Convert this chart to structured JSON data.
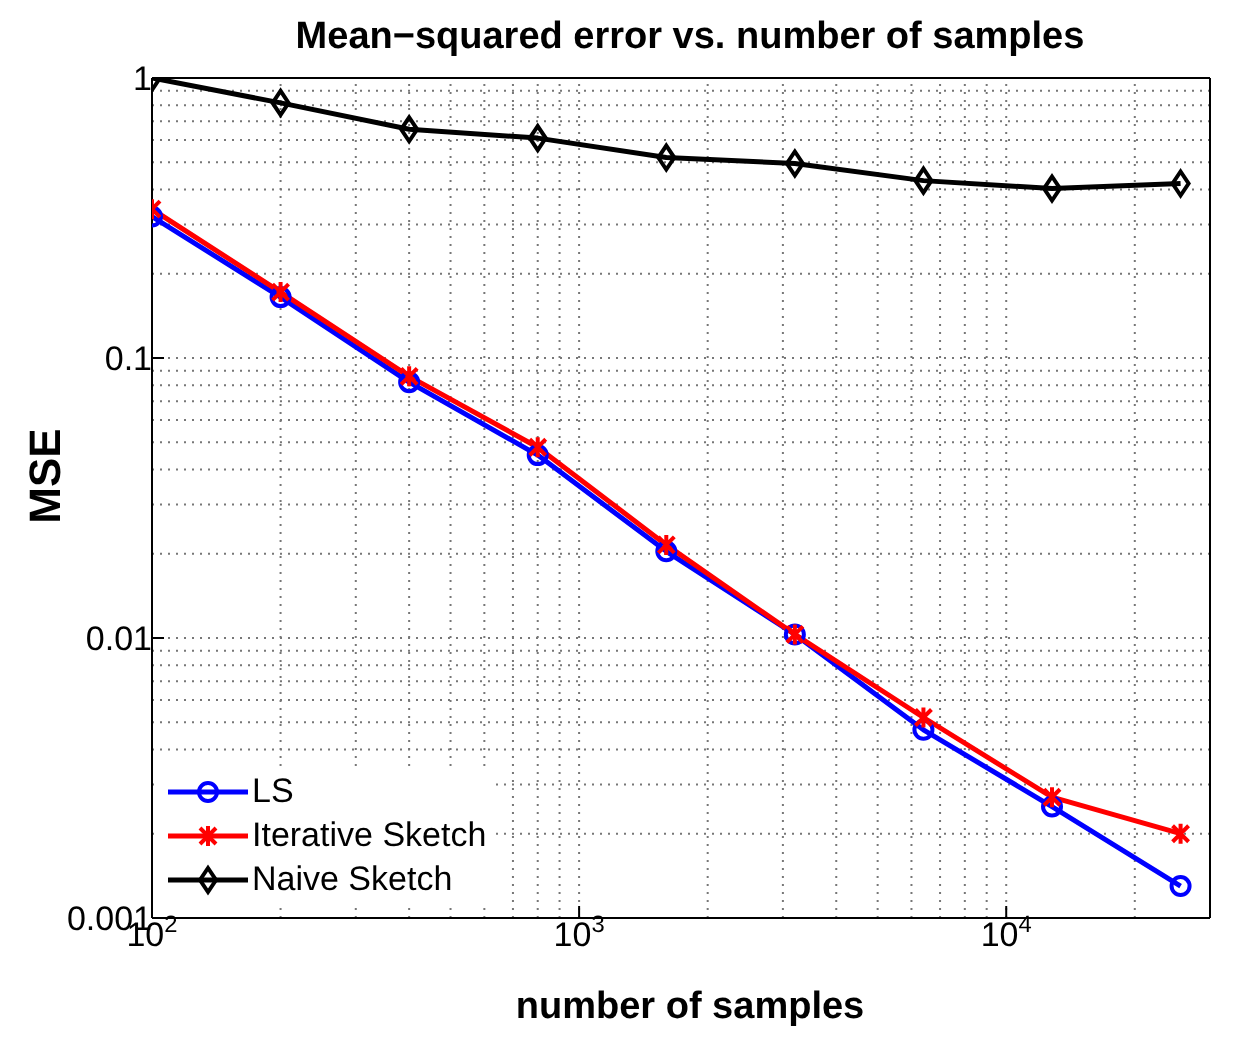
{
  "chart_data": {
    "type": "line",
    "title": "Mean−squared  error vs. number of samples",
    "xlabel": "number of samples",
    "ylabel": "MSE",
    "x": [
      100,
      200,
      400,
      800,
      1600,
      3200,
      6400,
      12800,
      25600
    ],
    "series": [
      {
        "name": "LS",
        "color": "#0000ff",
        "marker": "circle",
        "values": [
          0.32,
          0.165,
          0.082,
          0.045,
          0.0204,
          0.0103,
          0.0047,
          0.0025,
          0.0013
        ]
      },
      {
        "name": "Iterative Sketch",
        "color": "#ff0000",
        "marker": "cross",
        "values": [
          0.34,
          0.172,
          0.086,
          0.048,
          0.0215,
          0.0103,
          0.0052,
          0.0027,
          0.002
        ]
      },
      {
        "name": "Naive Sketch",
        "color": "#000000",
        "marker": "diamond",
        "values": [
          1.0,
          0.815,
          0.656,
          0.61,
          0.52,
          0.495,
          0.43,
          0.403,
          0.42
        ]
      }
    ],
    "log": "xy",
    "xlim": [
      100,
      30000
    ],
    "ylim": [
      0.001,
      1
    ],
    "xticks": [
      {
        "value": 100,
        "label": "10$^{2}$"
      },
      {
        "value": 1000,
        "label": "10$^{3}$"
      },
      {
        "value": 10000,
        "label": "10$^{4}$"
      }
    ],
    "yticks": [
      0.001,
      0.01,
      0.1,
      1
    ],
    "grid": true,
    "legend": "bottom left",
    "line_style": "solid"
  }
}
